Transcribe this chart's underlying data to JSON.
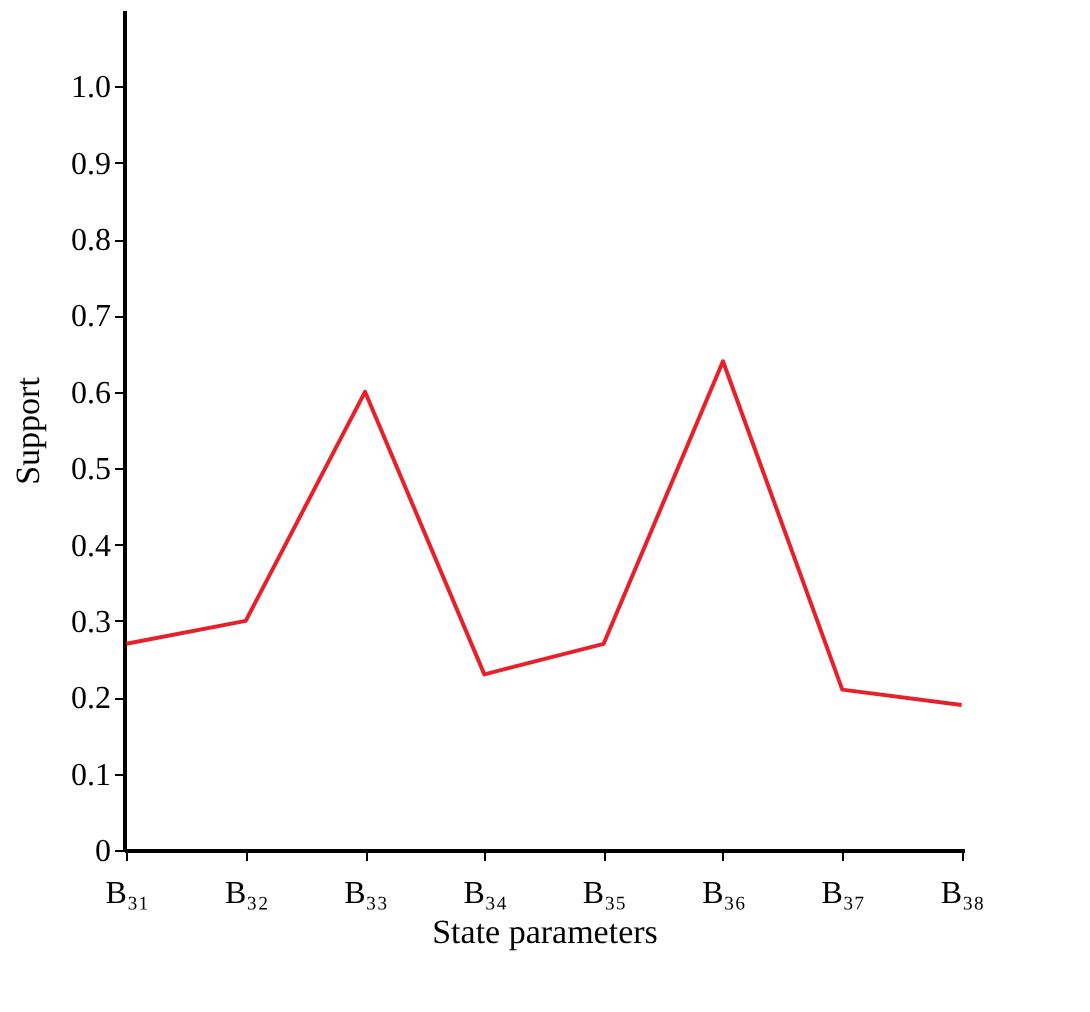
{
  "chart_data": {
    "type": "line",
    "xlabel": "State parameters",
    "ylabel": "Support",
    "categories": [
      "B₃₁",
      "B₃₂",
      "B₃₃",
      "B₃₄",
      "B₃₅",
      "B₃₆",
      "B₃₇",
      "B₃₈"
    ],
    "series": [
      {
        "color": "#e8202a",
        "values": [
          0.27,
          0.3,
          0.6,
          0.23,
          0.27,
          0.64,
          0.21,
          0.19
        ]
      }
    ],
    "ylim": [
      0,
      1.1
    ],
    "yticks": [
      0,
      0.1,
      0.2,
      0.3,
      0.4,
      0.5,
      0.6,
      0.7,
      0.8,
      0.9,
      {
        "value": 1,
        "label": "1.0"
      }
    ],
    "grid": false,
    "marker": "none",
    "line_style": "solid"
  }
}
